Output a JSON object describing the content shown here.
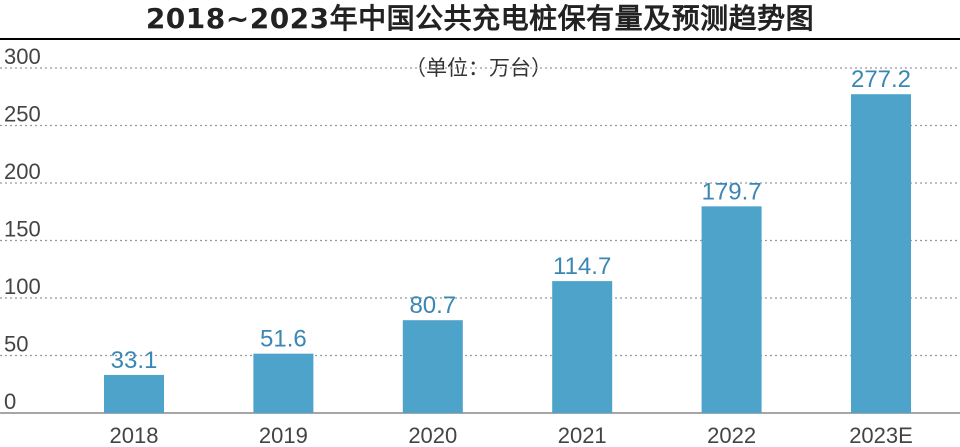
{
  "chart_data": {
    "type": "bar",
    "title": "2018~2023年中国公共充电桩保有量及预测趋势图",
    "unit_note": "（单位：万台）",
    "categories": [
      "2018",
      "2019",
      "2020",
      "2021",
      "2022",
      "2023E"
    ],
    "values": [
      33.1,
      51.6,
      80.7,
      114.7,
      179.7,
      277.2
    ],
    "value_labels": [
      "33.1",
      "51.6",
      "80.7",
      "114.7",
      "179.7",
      "277.2"
    ],
    "ylim": [
      0,
      300
    ],
    "yticks": [
      "0",
      "50",
      "100",
      "150",
      "200",
      "250",
      "300"
    ],
    "grid": true,
    "colors": {
      "bar": "#4ea3cb",
      "label": "#3a86b4"
    }
  }
}
